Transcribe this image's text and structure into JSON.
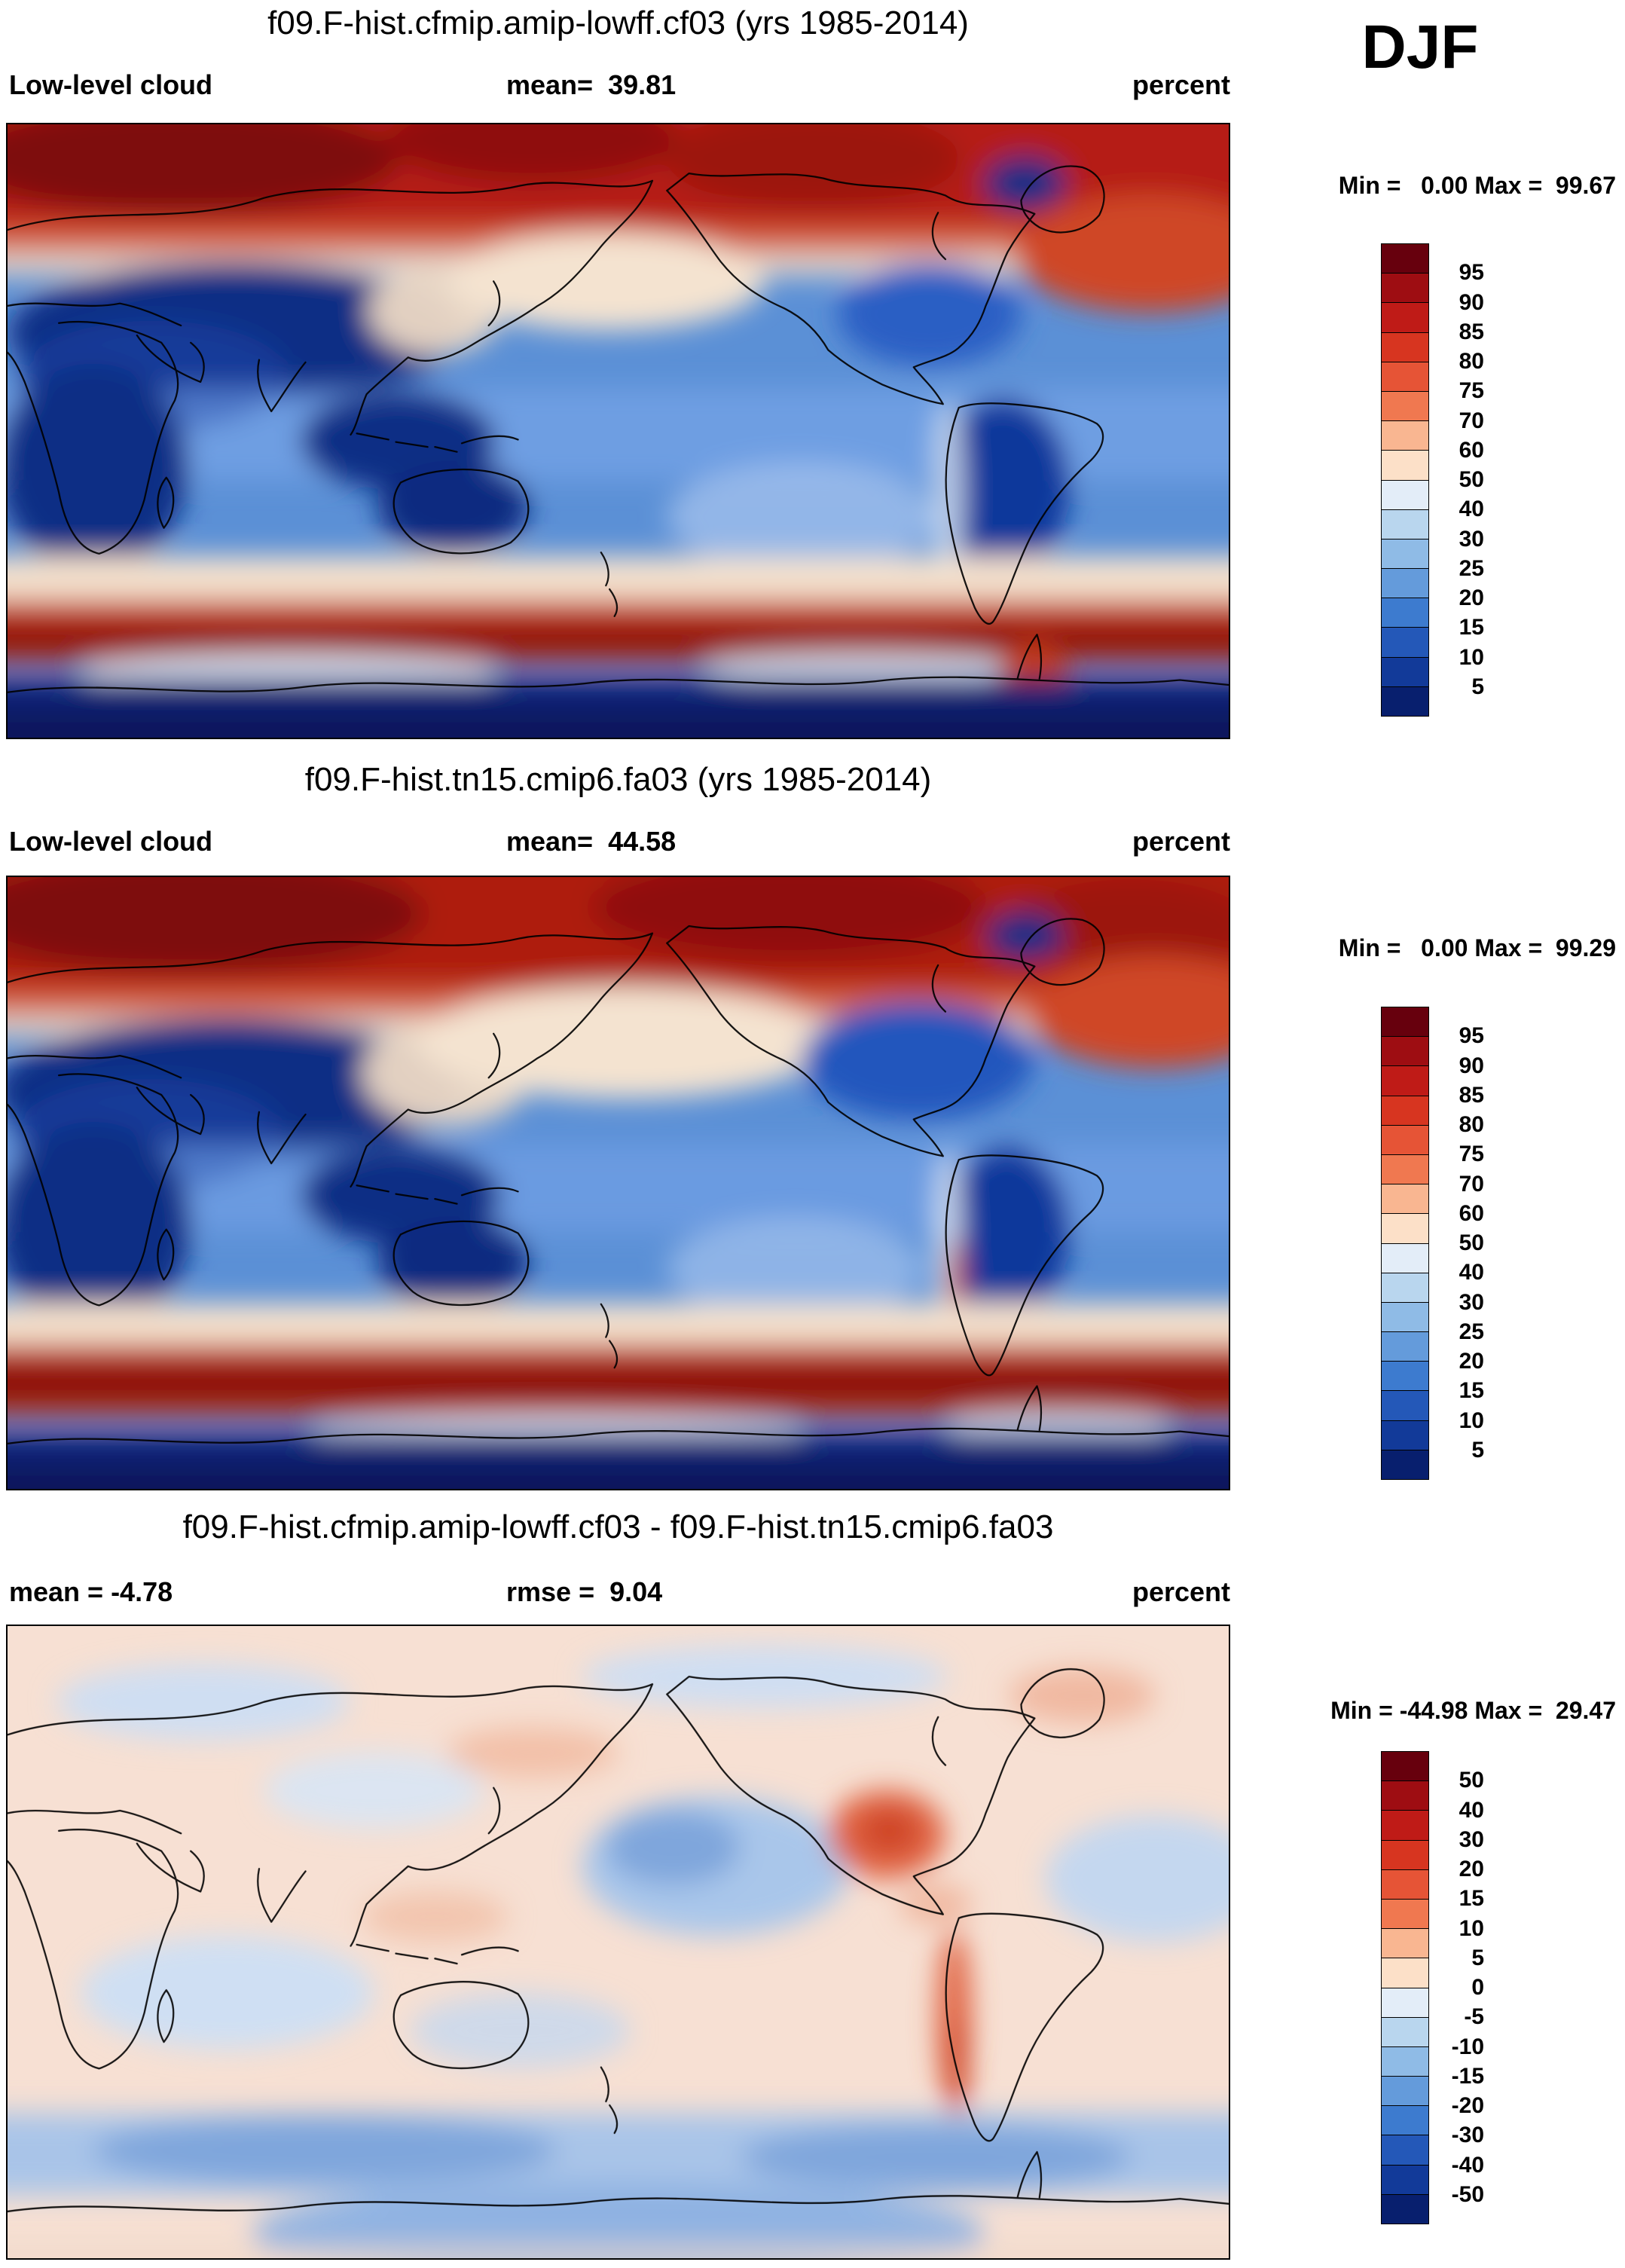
{
  "page": {
    "season_label": "DJF",
    "background": "#ffffff"
  },
  "panels": [
    {
      "title": "f09.F-hist.cfmip.amip-lowff.cf03 (yrs 1985-2014)",
      "field_label": "Low-level cloud",
      "mean_label": "mean=  39.81",
      "units_label": "percent",
      "minmax_label": "Min =   0.00 Max =  99.67"
    },
    {
      "title": "f09.F-hist.tn15.cmip6.fa03 (yrs 1985-2014)",
      "field_label": "Low-level cloud",
      "mean_label": "mean=  44.58",
      "units_label": "percent",
      "minmax_label": "Min =   0.00 Max =  99.29"
    },
    {
      "title": "f09.F-hist.cfmip.amip-lowff.cf03 - f09.F-hist.tn15.cmip6.fa03",
      "field_label": "mean = -4.78",
      "mean_label": "rmse =  9.04",
      "units_label": "percent",
      "minmax_label": "Min = -44.98 Max =  29.47"
    }
  ],
  "colorbars": [
    {
      "ticks": [
        "95",
        "90",
        "85",
        "80",
        "75",
        "70",
        "60",
        "50",
        "40",
        "30",
        "25",
        "20",
        "15",
        "10",
        "5"
      ],
      "colors": [
        "#67000d",
        "#9e0d12",
        "#bf1b17",
        "#d73520",
        "#e65436",
        "#f07850",
        "#f9b691",
        "#fce0c8",
        "#e3edf8",
        "#b9d6ee",
        "#8fbbe6",
        "#649bdb",
        "#3d7bcf",
        "#2458b8",
        "#123a99",
        "#081f6e"
      ]
    },
    {
      "ticks": [
        "95",
        "90",
        "85",
        "80",
        "75",
        "70",
        "60",
        "50",
        "40",
        "30",
        "25",
        "20",
        "15",
        "10",
        "5"
      ],
      "colors": [
        "#67000d",
        "#9e0d12",
        "#bf1b17",
        "#d73520",
        "#e65436",
        "#f07850",
        "#f9b691",
        "#fce0c8",
        "#e3edf8",
        "#b9d6ee",
        "#8fbbe6",
        "#649bdb",
        "#3d7bcf",
        "#2458b8",
        "#123a99",
        "#081f6e"
      ]
    },
    {
      "ticks": [
        "50",
        "40",
        "30",
        "20",
        "15",
        "10",
        "5",
        "0",
        "-5",
        "-10",
        "-15",
        "-20",
        "-30",
        "-40",
        "-50"
      ],
      "colors": [
        "#67000d",
        "#9e0d12",
        "#bf1b17",
        "#d73520",
        "#e65436",
        "#f07850",
        "#f9b691",
        "#fce0c8",
        "#e3edf8",
        "#b9d6ee",
        "#8fbbe6",
        "#649bdb",
        "#3d7bcf",
        "#2458b8",
        "#123a99",
        "#081f6e"
      ]
    }
  ],
  "chart_data": [
    {
      "type": "heatmap",
      "kind": "global filled-contour map",
      "title": "f09.F-hist.cfmip.amip-lowff.cf03 (yrs 1985-2014)",
      "variable": "Low-level cloud",
      "units": "percent",
      "season": "DJF",
      "mean": 39.81,
      "min": 0.0,
      "max": 99.67,
      "contour_levels": [
        5,
        10,
        15,
        20,
        25,
        30,
        40,
        50,
        60,
        70,
        75,
        80,
        85,
        90,
        95
      ],
      "palette_top_to_bottom": [
        "#67000d",
        "#9e0d12",
        "#bf1b17",
        "#d73520",
        "#e65436",
        "#f07850",
        "#f9b691",
        "#fce0c8",
        "#e3edf8",
        "#b9d6ee",
        "#8fbbe6",
        "#649bdb",
        "#3d7bcf",
        "#2458b8",
        "#123a99",
        "#081f6e"
      ],
      "notes": "High values (dark red) over the Arctic and the Southern Ocean storm-track band; low values (dark blue) over tropical continents (Africa, Amazon, Australia, Maritime Continent), interior Eurasia, Greenland interior and Antarctica."
    },
    {
      "type": "heatmap",
      "kind": "global filled-contour map",
      "title": "f09.F-hist.tn15.cmip6.fa03 (yrs 1985-2014)",
      "variable": "Low-level cloud",
      "units": "percent",
      "season": "DJF",
      "mean": 44.58,
      "min": 0.0,
      "max": 99.29,
      "contour_levels": [
        5,
        10,
        15,
        20,
        25,
        30,
        40,
        50,
        60,
        70,
        75,
        80,
        85,
        90,
        95
      ],
      "palette_top_to_bottom": [
        "#67000d",
        "#9e0d12",
        "#bf1b17",
        "#d73520",
        "#e65436",
        "#f07850",
        "#f9b691",
        "#fce0c8",
        "#e3edf8",
        "#b9d6ee",
        "#8fbbe6",
        "#649bdb",
        "#3d7bcf",
        "#2458b8",
        "#123a99",
        "#081f6e"
      ],
      "notes": "Same field for the reference run; broader and darker red band over the Southern Ocean and deeper red over the northern high latitudes than the top panel."
    },
    {
      "type": "heatmap",
      "kind": "global filled-contour difference map",
      "title": "f09.F-hist.cfmip.amip-lowff.cf03 - f09.F-hist.tn15.cmip6.fa03",
      "variable": "Low-level cloud difference",
      "units": "percent",
      "season": "DJF",
      "mean": -4.78,
      "rmse": 9.04,
      "min": -44.98,
      "max": 29.47,
      "contour_levels": [
        -50,
        -40,
        -30,
        -20,
        -15,
        -10,
        -5,
        0,
        5,
        10,
        15,
        20,
        30,
        40,
        50
      ],
      "palette_top_to_bottom": [
        "#67000d",
        "#9e0d12",
        "#bf1b17",
        "#d73520",
        "#e65436",
        "#f07850",
        "#f9b691",
        "#fce0c8",
        "#e3edf8",
        "#b9d6ee",
        "#8fbbe6",
        "#649bdb",
        "#3d7bcf",
        "#2458b8",
        "#123a99",
        "#081f6e"
      ],
      "notes": "Mostly weak differences: pale red over land, pale blue patches over oceans, a stronger negative (blue) band over the Southern Ocean, and positive (red) anomalies over central North America and along the Andes."
    }
  ]
}
